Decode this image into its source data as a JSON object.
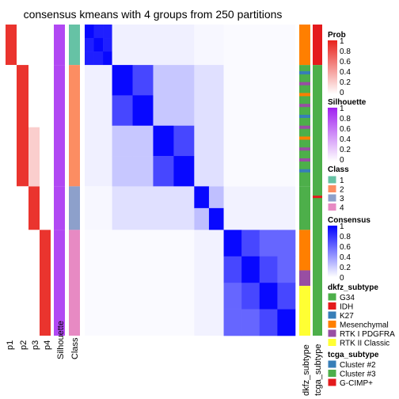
{
  "chart_data": {
    "type": "heatmap",
    "title": "consensus kmeans with 4 groups from 250 partitions",
    "sample_groups": [
      {
        "class": "1",
        "fraction": 0.13,
        "blocks": 3
      },
      {
        "class": "2",
        "fraction": 0.39,
        "blocks": 4
      },
      {
        "class": "3",
        "fraction": 0.14,
        "blocks": 2
      },
      {
        "class": "4",
        "fraction": 0.34,
        "blocks": 4
      }
    ],
    "left_annotations": [
      "p1",
      "p2",
      "p3",
      "p4",
      "Silhouette",
      "Class"
    ],
    "right_annotations": [
      "dkfz_subtype",
      "tcga_subtype"
    ],
    "legends": {
      "prob": {
        "title": "Prob",
        "ticks": [
          "1",
          "0.8",
          "0.6",
          "0.4",
          "0.2",
          "0"
        ],
        "low": "#ffffff",
        "high": "#e8221c"
      },
      "silhouette": {
        "title": "Silhouette",
        "ticks": [
          "1",
          "0.8",
          "0.6",
          "0.4",
          "0.2",
          "0"
        ],
        "low": "#ffffff",
        "high": "#a020f0"
      },
      "class": {
        "title": "Class",
        "items": [
          {
            "label": "1",
            "color": "#66c2a5"
          },
          {
            "label": "2",
            "color": "#fc8d62"
          },
          {
            "label": "3",
            "color": "#8da0cb"
          },
          {
            "label": "4",
            "color": "#e78ac3"
          }
        ]
      },
      "consensus": {
        "title": "Consensus",
        "ticks": [
          "1",
          "0.8",
          "0.6",
          "0.4",
          "0.2",
          "0"
        ],
        "low": "#ffffff",
        "high": "#0000ff"
      },
      "dkfz_subtype": {
        "title": "dkfz_subtype",
        "items": [
          {
            "label": "G34",
            "color": "#4daf4a"
          },
          {
            "label": "IDH",
            "color": "#e41a1c"
          },
          {
            "label": "K27",
            "color": "#377eb8"
          },
          {
            "label": "Mesenchymal",
            "color": "#ff7f00"
          },
          {
            "label": "RTK I PDGFRA",
            "color": "#984ea3"
          },
          {
            "label": "RTK II Classic",
            "color": "#ffff33"
          }
        ]
      },
      "tcga_subtype": {
        "title": "tcga_subtype",
        "items": [
          {
            "label": "Cluster #2",
            "color": "#377eb8"
          },
          {
            "label": "Cluster #3",
            "color": "#4daf4a"
          },
          {
            "label": "G-CIMP+",
            "color": "#e41a1c"
          }
        ]
      }
    }
  }
}
